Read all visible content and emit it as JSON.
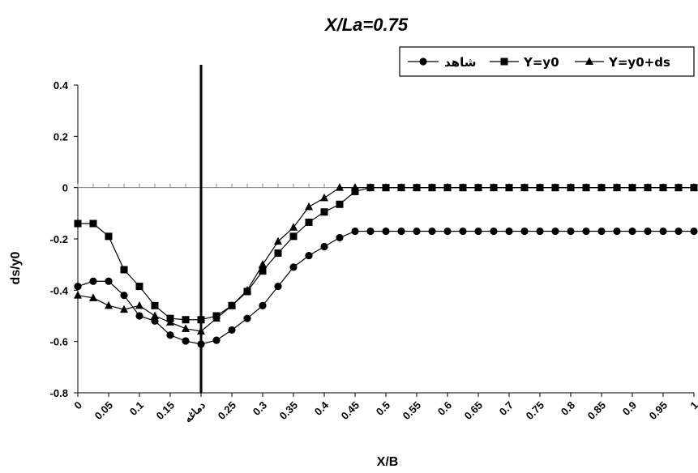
{
  "chart_data": {
    "type": "line",
    "title": "X/La=0.75",
    "xlabel": "X/B",
    "ylabel": "ds/y0",
    "ylim": [
      -0.8,
      0.4
    ],
    "yticks": [
      "0.4",
      "0.2",
      "0",
      "-0.2",
      "-0.4",
      "-0.6",
      "-0.8"
    ],
    "xtick_labels": [
      "0",
      "0.05",
      "0.1",
      "0.15",
      "دماغه",
      "0.25",
      "0.3",
      "0.35",
      "0.4",
      "0.45",
      "0.5",
      "0.55",
      "0.6",
      "0.65",
      "0.7",
      "0.75",
      "0.8",
      "0.85",
      "0.9",
      "0.95",
      "1"
    ],
    "legend_position": "top-right",
    "grid": false,
    "vertical_marker_x": 0.2,
    "x": [
      0,
      0.025,
      0.05,
      0.075,
      0.1,
      0.125,
      0.15,
      0.175,
      0.2,
      0.225,
      0.25,
      0.275,
      0.3,
      0.325,
      0.35,
      0.375,
      0.4,
      0.425,
      0.45,
      0.475,
      0.5,
      0.525,
      0.55,
      0.575,
      0.6,
      0.625,
      0.65,
      0.675,
      0.7,
      0.725,
      0.75,
      0.775,
      0.8,
      0.825,
      0.85,
      0.875,
      0.9,
      0.925,
      0.95,
      0.975,
      1
    ],
    "series": [
      {
        "name": "شاهد",
        "marker": "circle",
        "values": [
          -0.385,
          -0.365,
          -0.365,
          -0.42,
          -0.5,
          -0.52,
          -0.575,
          -0.598,
          -0.61,
          -0.595,
          -0.555,
          -0.51,
          -0.46,
          -0.385,
          -0.31,
          -0.265,
          -0.23,
          -0.195,
          -0.17,
          -0.17,
          -0.17,
          -0.17,
          -0.17,
          -0.17,
          -0.17,
          -0.17,
          -0.17,
          -0.17,
          -0.17,
          -0.17,
          -0.17,
          -0.17,
          -0.17,
          -0.17,
          -0.17,
          -0.17,
          -0.17,
          -0.17,
          -0.17,
          -0.17,
          -0.17
        ]
      },
      {
        "name": "Y=y0",
        "marker": "square",
        "values": [
          -0.14,
          -0.14,
          -0.19,
          -0.32,
          -0.385,
          -0.46,
          -0.51,
          -0.515,
          -0.515,
          -0.5,
          -0.46,
          -0.405,
          -0.325,
          -0.255,
          -0.19,
          -0.135,
          -0.095,
          -0.065,
          -0.015,
          0,
          0,
          0,
          0,
          0,
          0,
          0,
          0,
          0,
          0,
          0,
          0,
          0,
          0,
          0,
          0,
          0,
          0,
          0,
          0,
          0,
          0
        ]
      },
      {
        "name": "Y=y0+ds",
        "marker": "triangle",
        "values": [
          -0.42,
          -0.43,
          -0.46,
          -0.475,
          -0.46,
          -0.5,
          -0.525,
          -0.55,
          -0.56,
          -0.51,
          -0.46,
          -0.4,
          -0.3,
          -0.21,
          -0.155,
          -0.075,
          -0.04,
          0,
          0,
          0,
          0,
          0,
          0,
          0,
          0,
          0,
          0,
          0,
          0,
          0,
          0,
          0,
          0,
          0,
          0,
          0,
          0,
          0,
          0,
          0,
          0
        ]
      }
    ]
  }
}
